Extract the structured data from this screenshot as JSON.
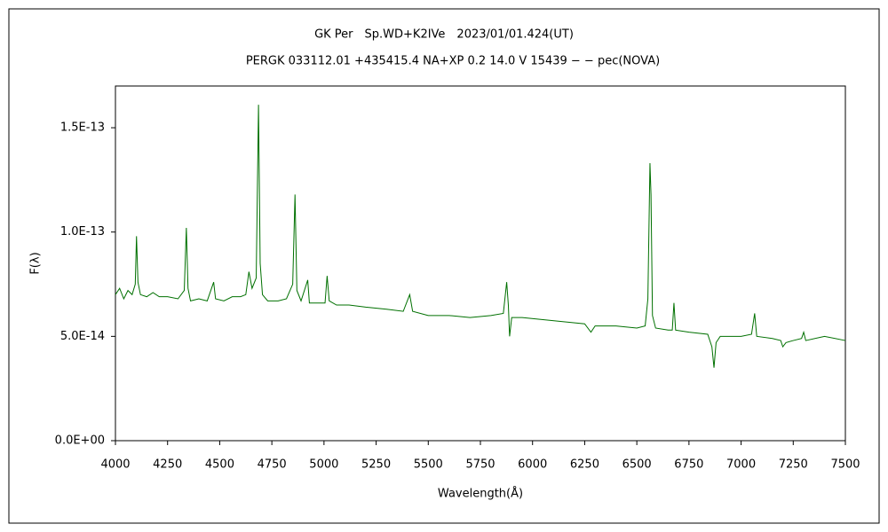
{
  "chart_data": {
    "type": "line",
    "title": "GK Per　Sp.WD+K2IVe　2023/01/01.424(UT)",
    "subtitle": "PERGK 033112.01 +435415.4 NA+XP 0.2 14.0 V 15439 − − pec(NOVA)",
    "x_label": "Wavelength(Å)",
    "y_label": "F(λ)",
    "color": "#007000",
    "xlim": [
      4000,
      7500
    ],
    "xticks": [
      4000,
      4250,
      4500,
      4750,
      5000,
      5250,
      5500,
      5750,
      6000,
      6250,
      6500,
      6750,
      7000,
      7250,
      7500
    ],
    "ylim": [
      0,
      1.7e-13
    ],
    "yticks": [
      {
        "value": 0,
        "label": "0.0E+00"
      },
      {
        "value": 5e-14,
        "label": "5.0E-14"
      },
      {
        "value": 1e-13,
        "label": "1.0E-13"
      },
      {
        "value": 1.5e-13,
        "label": "1.5E-13"
      }
    ],
    "x": [
      4000,
      4020,
      4040,
      4060,
      4080,
      4095,
      4101,
      4108,
      4120,
      4150,
      4180,
      4210,
      4250,
      4300,
      4330,
      4340,
      4348,
      4360,
      4400,
      4440,
      4471,
      4480,
      4520,
      4560,
      4600,
      4625,
      4640,
      4655,
      4675,
      4686,
      4694,
      4705,
      4730,
      4780,
      4820,
      4850,
      4861,
      4870,
      4890,
      4922,
      4930,
      4970,
      5005,
      5015,
      5025,
      5060,
      5120,
      5200,
      5300,
      5380,
      5411,
      5425,
      5500,
      5600,
      5700,
      5800,
      5860,
      5876,
      5884,
      5890,
      5900,
      5950,
      6050,
      6150,
      6250,
      6280,
      6300,
      6400,
      6500,
      6540,
      6553,
      6563,
      6568,
      6575,
      6590,
      6650,
      6670,
      6678,
      6686,
      6750,
      6840,
      6860,
      6870,
      6880,
      6900,
      7000,
      7050,
      7065,
      7075,
      7150,
      7190,
      7200,
      7215,
      7250,
      7290,
      7300,
      7310,
      7400,
      7500
    ],
    "values": [
      7e-14,
      7.3e-14,
      6.8e-14,
      7.2e-14,
      7e-14,
      7.5e-14,
      9.8e-14,
      7.6e-14,
      7e-14,
      6.9e-14,
      7.1e-14,
      6.9e-14,
      6.9e-14,
      6.8e-14,
      7.2e-14,
      1.02e-13,
      7.3e-14,
      6.7e-14,
      6.8e-14,
      6.7e-14,
      7.6e-14,
      6.8e-14,
      6.7e-14,
      6.9e-14,
      6.9e-14,
      7e-14,
      8.1e-14,
      7.3e-14,
      7.8e-14,
      1.61e-13,
      8.5e-14,
      7e-14,
      6.7e-14,
      6.7e-14,
      6.8e-14,
      7.5e-14,
      1.18e-13,
      7.2e-14,
      6.7e-14,
      7.7e-14,
      6.6e-14,
      6.6e-14,
      6.6e-14,
      7.9e-14,
      6.7e-14,
      6.5e-14,
      6.5e-14,
      6.4e-14,
      6.3e-14,
      6.2e-14,
      7e-14,
      6.2e-14,
      6e-14,
      6e-14,
      5.9e-14,
      6e-14,
      6.1e-14,
      7.6e-14,
      6.5e-14,
      5e-14,
      5.9e-14,
      5.9e-14,
      5.8e-14,
      5.7e-14,
      5.6e-14,
      5.2e-14,
      5.5e-14,
      5.5e-14,
      5.4e-14,
      5.5e-14,
      6.8e-14,
      1.33e-13,
      1.18e-13,
      6e-14,
      5.4e-14,
      5.3e-14,
      5.3e-14,
      6.6e-14,
      5.3e-14,
      5.2e-14,
      5.1e-14,
      4.5e-14,
      3.5e-14,
      4.7e-14,
      5e-14,
      5e-14,
      5.1e-14,
      6.1e-14,
      5e-14,
      4.9e-14,
      4.8e-14,
      4.5e-14,
      4.7e-14,
      4.8e-14,
      4.9e-14,
      5.2e-14,
      4.8e-14,
      5e-14,
      4.8e-14
    ]
  }
}
